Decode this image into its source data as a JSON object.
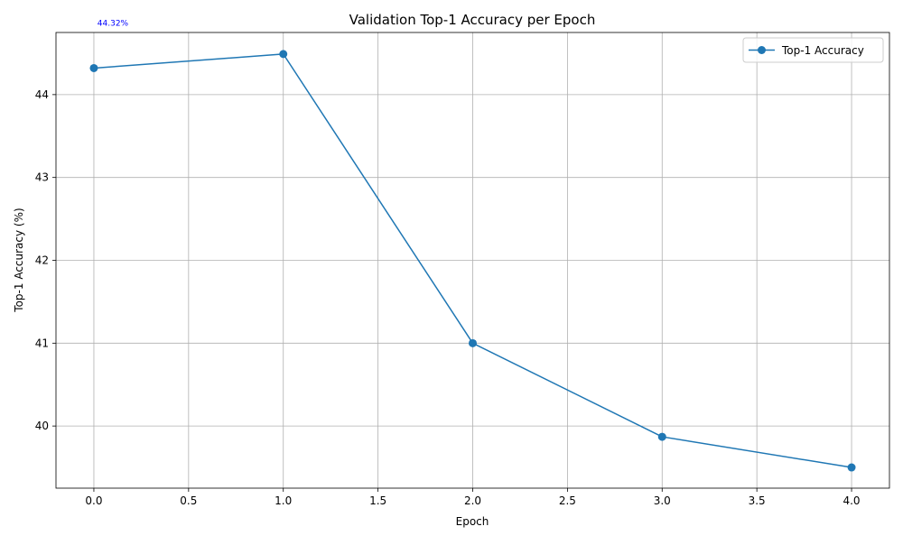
{
  "chart_data": {
    "type": "line",
    "title": "Validation Top-1 Accuracy per Epoch",
    "xlabel": "Epoch",
    "ylabel": "Top-1 Accuracy (%)",
    "xlim": [
      -0.2,
      4.2
    ],
    "ylim": [
      39.25,
      44.75
    ],
    "xticks": [
      0.0,
      0.5,
      1.0,
      1.5,
      2.0,
      2.5,
      3.0,
      3.5,
      4.0
    ],
    "xtick_labels": [
      "0.0",
      "0.5",
      "1.0",
      "1.5",
      "2.0",
      "2.5",
      "3.0",
      "3.5",
      "4.0"
    ],
    "yticks": [
      40,
      41,
      42,
      43,
      44
    ],
    "ytick_labels": [
      "40",
      "41",
      "42",
      "43",
      "44"
    ],
    "grid": true,
    "legend_position": "top-right",
    "series": [
      {
        "name": "Top-1 Accuracy",
        "color": "#1f77b4",
        "marker": "circle",
        "x": [
          0,
          1,
          2,
          3,
          4
        ],
        "y": [
          44.32,
          44.49,
          41.0,
          39.87,
          39.5
        ]
      }
    ],
    "annotations": [
      {
        "text": "44.32%",
        "x": 0,
        "y": 44.32,
        "color": "#0000ff"
      }
    ]
  }
}
